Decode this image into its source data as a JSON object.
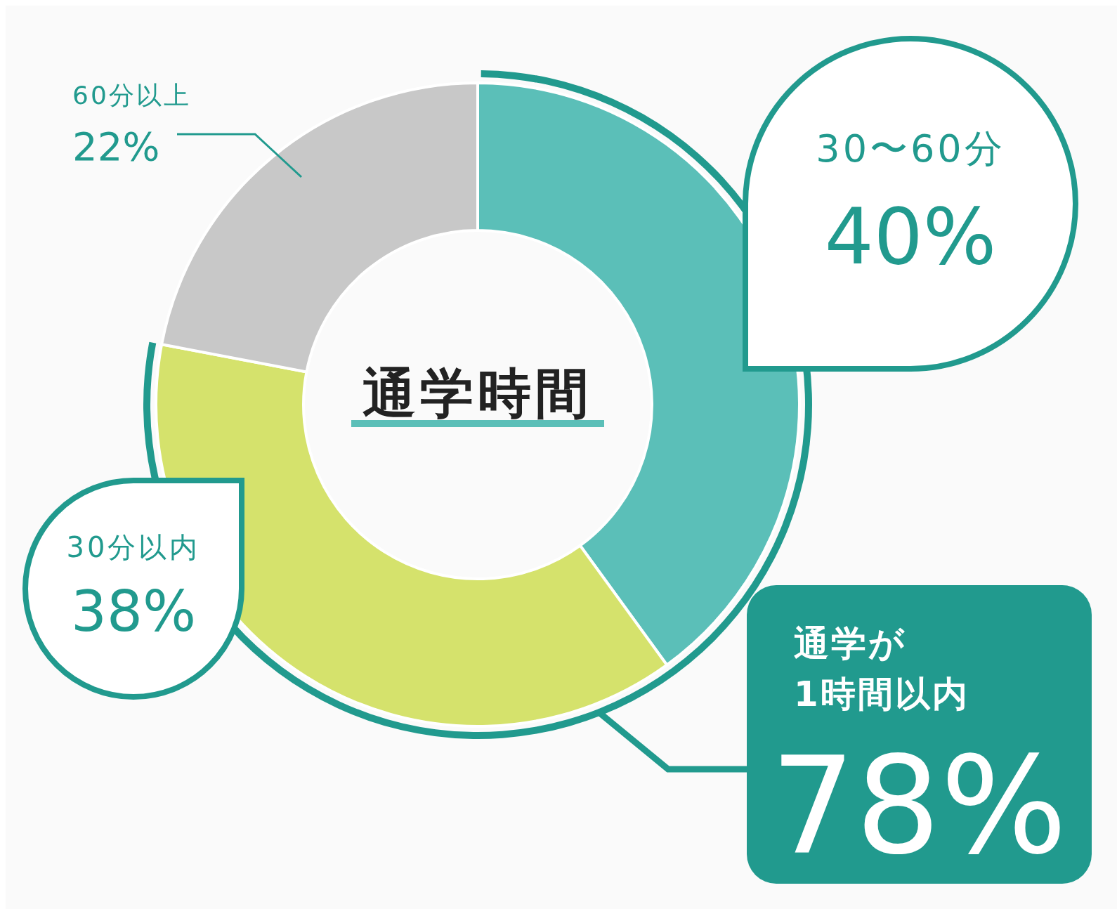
{
  "chart_data": {
    "type": "donut",
    "title": "通学時間",
    "categories": [
      "30〜60分",
      "30分以内",
      "60分以上"
    ],
    "values": [
      40,
      38,
      22
    ],
    "colors": [
      "#5bbfb8",
      "#d5e26c",
      "#c8c8c8"
    ],
    "value_labels": [
      "40%",
      "38%",
      "22%"
    ],
    "annotations": [
      "通学が\n1時間以内\n78%"
    ]
  }
}
